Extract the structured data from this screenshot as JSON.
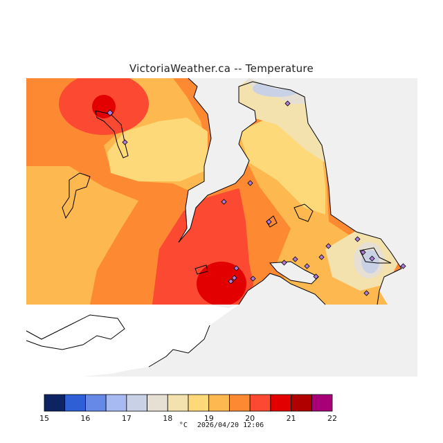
{
  "title": "VictoriaWeather.ca  --  Temperature",
  "legend": {
    "colors": [
      "#0c2462",
      "#2e5fd6",
      "#6688e6",
      "#a8baf2",
      "#c9d1e6",
      "#e5dfd4",
      "#f3e2ae",
      "#fdd97a",
      "#fdb84f",
      "#fd8a33",
      "#fb4a31",
      "#e30000",
      "#b00000",
      "#aa0077"
    ],
    "tick_labels": [
      "15",
      "16",
      "17",
      "18",
      "19",
      "20",
      "21",
      "22"
    ]
  },
  "footer": {
    "unit": "°C",
    "timestamp": "2026/04/20 12:06"
  },
  "colors": {
    "water": "#f0f0f0",
    "coast": "#000000",
    "station_marker": "#b07ad8"
  }
}
